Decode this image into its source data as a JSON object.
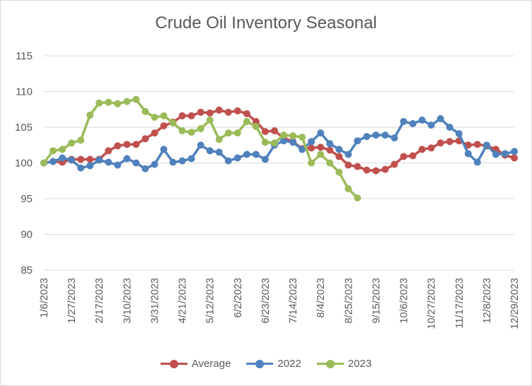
{
  "chart_data": {
    "type": "line",
    "title": "Crude Oil Inventory Seasonal",
    "xlabel": "",
    "ylabel": "",
    "ylim": [
      85,
      115
    ],
    "yticks": [
      85,
      90,
      95,
      100,
      105,
      110,
      115
    ],
    "x_tick_labels": [
      "1/6/2023",
      "1/27/2023",
      "2/17/2023",
      "3/10/2023",
      "3/31/2023",
      "4/21/2023",
      "5/12/2023",
      "6/2/2023",
      "6/23/2023",
      "7/14/2023",
      "8/4/2023",
      "8/25/2023",
      "9/15/2023",
      "10/6/2023",
      "10/27/2023",
      "11/17/2023",
      "12/8/2023",
      "12/29/2023"
    ],
    "x_tick_every_weeks": 3,
    "num_weeks": 52,
    "grid": "horizontal",
    "legend_position": "bottom",
    "series": [
      {
        "name": "Average",
        "color": "#c0504d",
        "values": [
          100.0,
          100.2,
          100.1,
          100.5,
          100.5,
          100.5,
          100.5,
          101.7,
          102.4,
          102.6,
          102.6,
          103.4,
          104.2,
          105.2,
          105.7,
          106.6,
          106.6,
          107.1,
          107.0,
          107.4,
          107.1,
          107.3,
          106.9,
          105.8,
          104.4,
          104.5,
          103.5,
          103.0,
          102.0,
          102.1,
          102.2,
          101.8,
          100.9,
          99.7,
          99.5,
          99.0,
          98.9,
          99.1,
          99.8,
          100.9,
          101.0,
          101.9,
          102.1,
          102.8,
          103.0,
          103.1,
          102.5,
          102.6,
          102.4,
          101.9,
          101.1,
          100.7
        ]
      },
      {
        "name": "2022",
        "color": "#4f81bd",
        "values": [
          100.0,
          100.2,
          100.7,
          100.4,
          99.3,
          99.6,
          100.4,
          100.1,
          99.7,
          100.6,
          100.0,
          99.2,
          99.8,
          101.9,
          100.1,
          100.3,
          100.6,
          102.5,
          101.7,
          101.5,
          100.3,
          100.7,
          101.2,
          101.2,
          100.5,
          102.5,
          103.1,
          102.9,
          101.9,
          103.0,
          104.2,
          102.7,
          101.9,
          101.2,
          103.1,
          103.7,
          103.9,
          103.9,
          103.5,
          105.8,
          105.5,
          106.0,
          105.3,
          106.2,
          105.0,
          104.1,
          101.3,
          100.1,
          102.5,
          101.2,
          101.3,
          101.6
        ]
      },
      {
        "name": "2023",
        "color": "#9bbb59",
        "values": [
          100.0,
          101.7,
          101.9,
          102.8,
          103.2,
          106.7,
          108.4,
          108.5,
          108.3,
          108.6,
          108.9,
          107.2,
          106.4,
          106.6,
          105.6,
          104.5,
          104.3,
          104.8,
          106.0,
          103.3,
          104.2,
          104.2,
          105.8,
          105.1,
          102.9,
          102.8,
          103.9,
          103.8,
          103.6,
          100.0,
          101.2,
          100.0,
          98.7,
          96.4,
          95.1
        ]
      }
    ]
  }
}
